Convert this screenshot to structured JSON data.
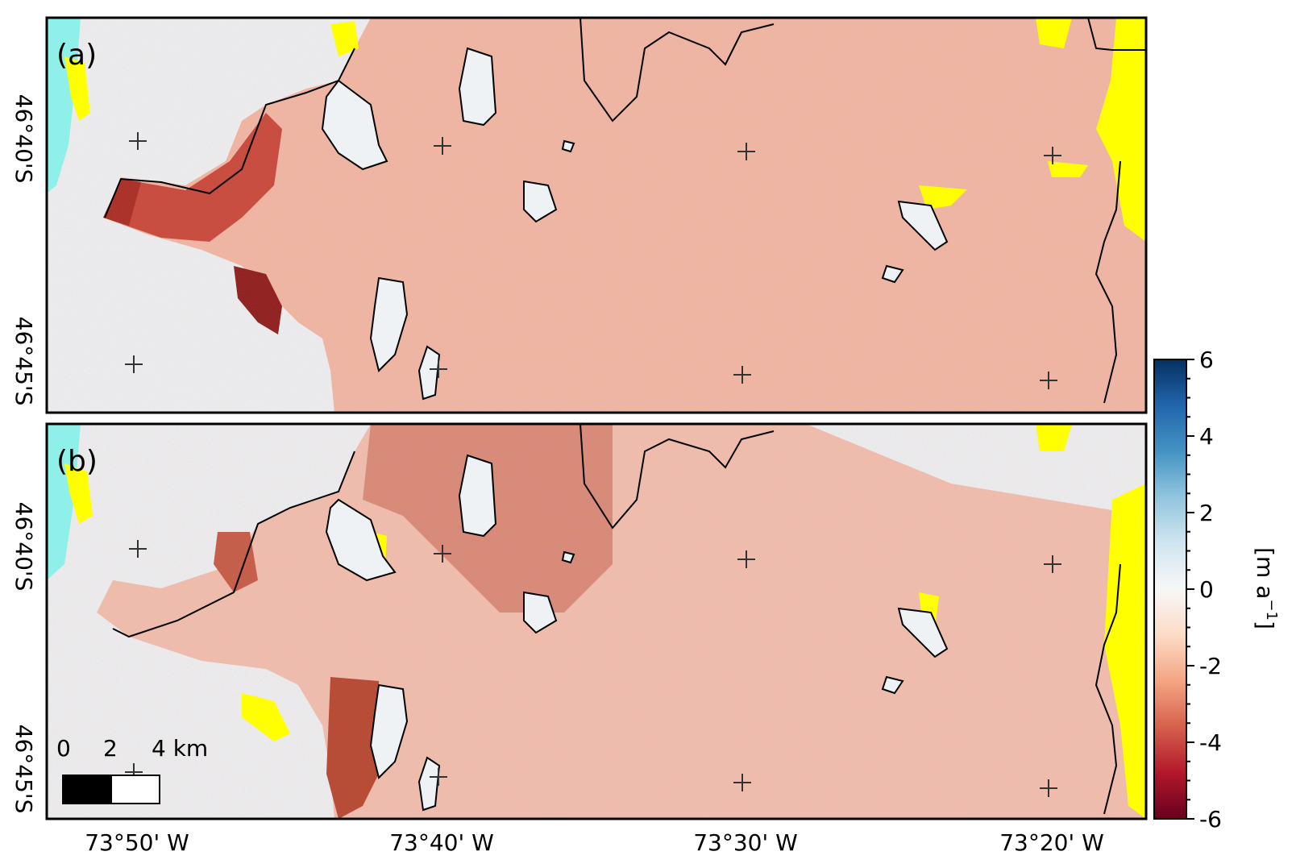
{
  "panels": [
    {
      "label": "(a)"
    },
    {
      "label": "(b)"
    }
  ],
  "latitude_ticks": [
    "46°40'S",
    "46°45'S"
  ],
  "longitude_ticks": [
    "73°50' W",
    "73°40' W",
    "73°30' W",
    "73°20' W"
  ],
  "colorbar": {
    "ticks": [
      "6",
      "4",
      "2",
      "0",
      "-2",
      "-4",
      "-6"
    ],
    "unit_label": "[m a",
    "unit_exponent": "−1",
    "unit_close": "]",
    "vmin": -6,
    "vmax": 6,
    "colormap": [
      "#67001f",
      "#b2182b",
      "#d6604d",
      "#f4a582",
      "#fddbc7",
      "#f7f7f7",
      "#d1e5f0",
      "#92c5de",
      "#4393c3",
      "#2166ac",
      "#053061"
    ]
  },
  "scale_bar": {
    "labels": [
      "0",
      "2",
      "4 km"
    ]
  },
  "colors": {
    "ice_loss": "#f2b8a6",
    "strong_loss": "#b02a22",
    "stable": "#eef2f5",
    "water": "#8ff0ea",
    "no_data": "#ffff00",
    "outline": "#000000"
  }
}
